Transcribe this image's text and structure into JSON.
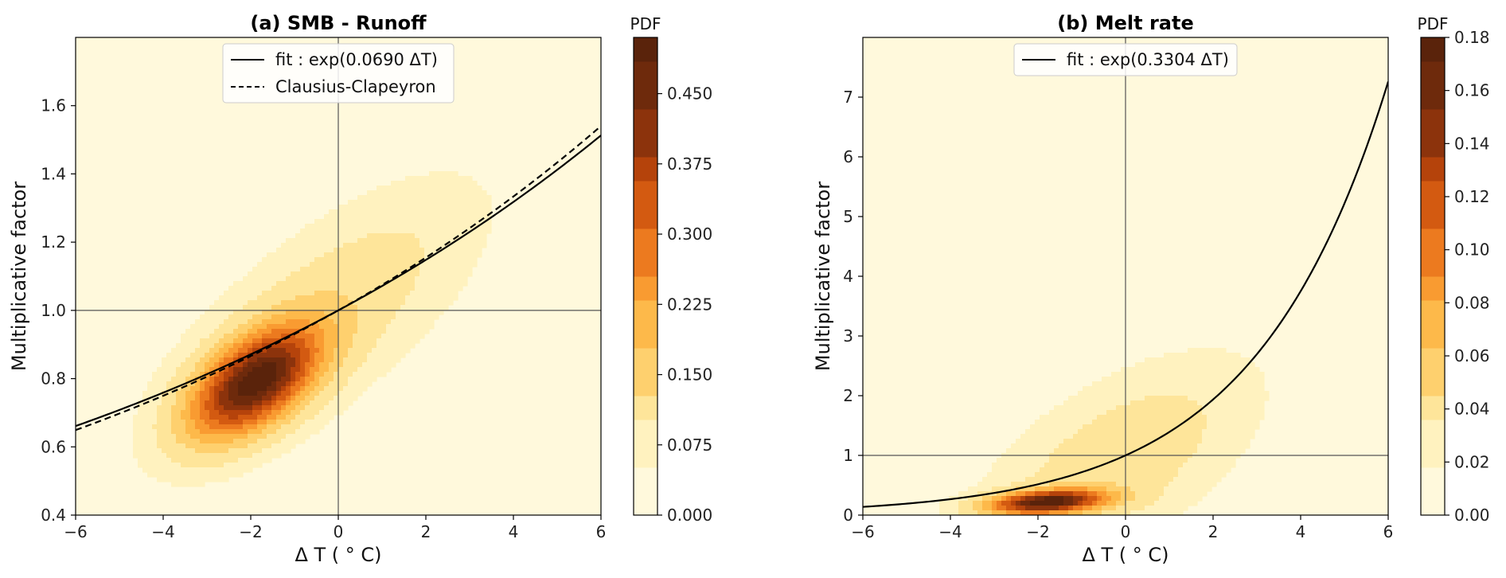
{
  "colors": {
    "background": "#ffffff",
    "colormap": [
      "#fff9dc",
      "#fff2bf",
      "#fee59a",
      "#fed06e",
      "#fdb94a",
      "#f99b31",
      "#ec7a1f",
      "#d35a11",
      "#b5430b",
      "#8c330c",
      "#6e2a0c",
      "#5a230b"
    ],
    "fit_line": "#000000",
    "cc_line": "#000000",
    "reference_lines": "#555555"
  },
  "chart_data": [
    {
      "type": "heatmap",
      "panel_id": "a",
      "title": "(a) SMB - Runoff",
      "xlabel": "Δ T ( ° C)",
      "ylabel": "Multiplicative factor",
      "xlim": [
        -6,
        6
      ],
      "ylim": [
        0.4,
        1.8
      ],
      "xticks": [
        "−6",
        "−4",
        "−2",
        "0",
        "2",
        "4",
        "6"
      ],
      "xtick_values": [
        -6,
        -4,
        -2,
        0,
        2,
        4,
        6
      ],
      "yticks": [
        "0.4",
        "0.6",
        "0.8",
        "1.0",
        "1.2",
        "1.4",
        "1.6"
      ],
      "ytick_values": [
        0.4,
        0.6,
        0.8,
        1.0,
        1.2,
        1.4,
        1.6
      ],
      "reference_lines": {
        "x": 0,
        "y": 1.0
      },
      "density": {
        "peak_x": -1.9,
        "peak_y": 0.79,
        "max": 0.5,
        "components": [
          {
            "x": -1.9,
            "y": 0.79,
            "sx": 1.0,
            "sy": 0.11,
            "rho": 0.55,
            "w": 1.0
          },
          {
            "x": -0.2,
            "y": 1.0,
            "sx": 2.2,
            "sy": 0.24,
            "rho": 0.7,
            "w": 0.16
          }
        ]
      },
      "series": [
        {
          "name": "fit : exp(0.0690 ΔT)",
          "style": "solid",
          "coefficient": 0.069
        },
        {
          "name": "Clausius-Clapeyron",
          "style": "dashed",
          "coefficient": 0.072
        }
      ],
      "legend": "top-center",
      "colorbar": {
        "title": "PDF",
        "min": 0.0,
        "max": 0.51,
        "ticks": [
          "0.000",
          "0.075",
          "0.150",
          "0.225",
          "0.300",
          "0.375",
          "0.450"
        ],
        "tick_values": [
          0.0,
          0.075,
          0.15,
          0.225,
          0.3,
          0.375,
          0.45
        ]
      }
    },
    {
      "type": "heatmap",
      "panel_id": "b",
      "title": "(b) Melt rate",
      "xlabel": "Δ T ( ° C)",
      "ylabel": "Multiplicative factor",
      "xlim": [
        -6,
        6
      ],
      "ylim": [
        0,
        8
      ],
      "xticks": [
        "−6",
        "−4",
        "−2",
        "0",
        "2",
        "4",
        "6"
      ],
      "xtick_values": [
        -6,
        -4,
        -2,
        0,
        2,
        4,
        6
      ],
      "yticks": [
        "0",
        "1",
        "2",
        "3",
        "4",
        "5",
        "6",
        "7"
      ],
      "ytick_values": [
        0,
        1,
        2,
        3,
        4,
        5,
        6,
        7
      ],
      "reference_lines": {
        "x": 0,
        "y": 1.0
      },
      "density": {
        "peak_x": -1.8,
        "peak_y": 0.22,
        "max": 0.18,
        "components": [
          {
            "x": -1.8,
            "y": 0.22,
            "sx": 0.9,
            "sy": 0.14,
            "rho": 0.3,
            "w": 1.0
          },
          {
            "x": -0.2,
            "y": 0.9,
            "sx": 2.0,
            "sy": 1.1,
            "rho": 0.6,
            "w": 0.17
          }
        ]
      },
      "series": [
        {
          "name": "fit : exp(0.3304 ΔT)",
          "style": "solid",
          "coefficient": 0.3304
        }
      ],
      "legend": "top-center",
      "colorbar": {
        "title": "PDF",
        "min": 0.0,
        "max": 0.18,
        "ticks": [
          "0.00",
          "0.02",
          "0.04",
          "0.06",
          "0.08",
          "0.10",
          "0.12",
          "0.14",
          "0.16",
          "0.18"
        ],
        "tick_values": [
          0.0,
          0.02,
          0.04,
          0.06,
          0.08,
          0.1,
          0.12,
          0.14,
          0.16,
          0.18
        ]
      }
    }
  ]
}
